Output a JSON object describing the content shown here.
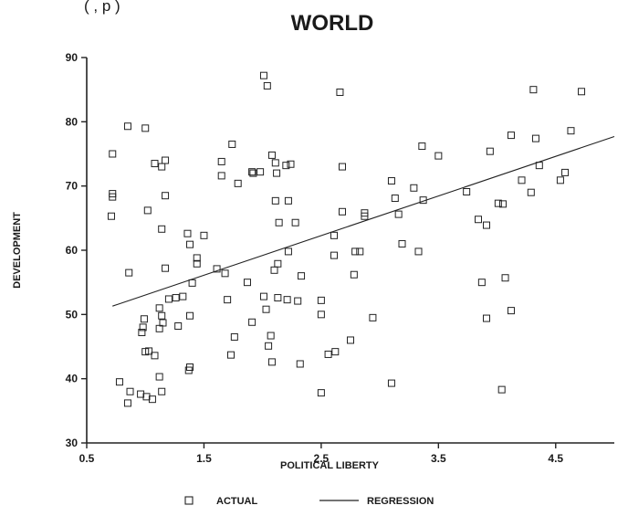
{
  "header_fragment": "(      , p      )",
  "chart_data": {
    "type": "scatter",
    "title": "WORLD",
    "xlabel": "POLITICAL LIBERTY",
    "ylabel": "DEVELOPMENT",
    "xlim": [
      0.5,
      5.0
    ],
    "ylim": [
      30,
      90
    ],
    "xticks": [
      0.5,
      1.5,
      2.5,
      3.5,
      4.5
    ],
    "xtick_labels": [
      "0.5",
      "1.5",
      "2.5",
      "3.5",
      "4.5"
    ],
    "yticks": [
      30,
      40,
      50,
      60,
      70,
      80,
      90
    ],
    "ytick_labels": [
      "30",
      "40",
      "50",
      "60",
      "70",
      "80",
      "90"
    ],
    "grid": false,
    "legend_position": "bottom",
    "series": [
      {
        "name": "ACTUAL",
        "marker": "square",
        "points": [
          [
            0.72,
            75.0
          ],
          [
            0.72,
            68.8
          ],
          [
            0.72,
            68.3
          ],
          [
            0.71,
            65.3
          ],
          [
            0.85,
            79.3
          ],
          [
            0.86,
            56.5
          ],
          [
            1.0,
            79.0
          ],
          [
            1.02,
            66.2
          ],
          [
            1.08,
            73.5
          ],
          [
            1.14,
            73.0
          ],
          [
            1.17,
            74.0
          ],
          [
            1.17,
            68.5
          ],
          [
            1.14,
            63.3
          ],
          [
            1.17,
            57.2
          ],
          [
            0.78,
            39.5
          ],
          [
            0.87,
            38.0
          ],
          [
            0.85,
            36.2
          ],
          [
            0.96,
            37.6
          ],
          [
            1.01,
            37.2
          ],
          [
            1.06,
            36.8
          ],
          [
            1.14,
            38.0
          ],
          [
            1.12,
            40.3
          ],
          [
            1.08,
            43.6
          ],
          [
            1.0,
            44.2
          ],
          [
            1.03,
            44.3
          ],
          [
            0.97,
            47.2
          ],
          [
            0.98,
            48.0
          ],
          [
            0.99,
            49.3
          ],
          [
            1.12,
            47.8
          ],
          [
            1.15,
            48.7
          ],
          [
            1.14,
            49.8
          ],
          [
            1.12,
            51.0
          ],
          [
            1.2,
            52.4
          ],
          [
            1.26,
            52.6
          ],
          [
            1.32,
            52.8
          ],
          [
            1.28,
            48.2
          ],
          [
            1.37,
            41.3
          ],
          [
            1.38,
            41.8
          ],
          [
            1.38,
            49.8
          ],
          [
            1.4,
            54.9
          ],
          [
            1.44,
            57.9
          ],
          [
            1.44,
            58.8
          ],
          [
            1.36,
            62.6
          ],
          [
            1.38,
            60.9
          ],
          [
            1.5,
            62.3
          ],
          [
            1.61,
            57.1
          ],
          [
            1.68,
            56.4
          ],
          [
            1.7,
            52.3
          ],
          [
            1.76,
            46.5
          ],
          [
            1.73,
            43.7
          ],
          [
            1.65,
            71.6
          ],
          [
            1.65,
            73.8
          ],
          [
            1.74,
            76.5
          ],
          [
            1.79,
            70.4
          ],
          [
            1.87,
            55.0
          ],
          [
            1.91,
            72.2
          ],
          [
            1.92,
            72.0
          ],
          [
            1.91,
            48.8
          ],
          [
            1.98,
            72.2
          ],
          [
            2.01,
            52.8
          ],
          [
            2.03,
            50.8
          ],
          [
            2.05,
            45.1
          ],
          [
            2.07,
            46.7
          ],
          [
            2.08,
            42.6
          ],
          [
            2.01,
            87.2
          ],
          [
            2.04,
            85.6
          ],
          [
            2.08,
            74.8
          ],
          [
            2.11,
            73.6
          ],
          [
            2.12,
            72.0
          ],
          [
            2.11,
            67.7
          ],
          [
            2.1,
            56.9
          ],
          [
            2.13,
            57.9
          ],
          [
            2.13,
            52.6
          ],
          [
            2.14,
            64.3
          ],
          [
            2.2,
            73.2
          ],
          [
            2.24,
            73.4
          ],
          [
            2.22,
            67.7
          ],
          [
            2.22,
            59.8
          ],
          [
            2.21,
            52.3
          ],
          [
            2.28,
            64.3
          ],
          [
            2.3,
            52.1
          ],
          [
            2.33,
            56.0
          ],
          [
            2.32,
            42.3
          ],
          [
            2.5,
            37.8
          ],
          [
            2.5,
            50.0
          ],
          [
            2.5,
            52.2
          ],
          [
            2.56,
            43.8
          ],
          [
            2.62,
            44.2
          ],
          [
            2.61,
            59.2
          ],
          [
            2.61,
            62.3
          ],
          [
            2.66,
            84.6
          ],
          [
            2.68,
            73.0
          ],
          [
            2.68,
            66.0
          ],
          [
            2.75,
            46.0
          ],
          [
            2.78,
            56.2
          ],
          [
            2.79,
            59.8
          ],
          [
            2.83,
            59.8
          ],
          [
            2.87,
            65.3
          ],
          [
            2.87,
            65.8
          ],
          [
            2.94,
            49.5
          ],
          [
            3.1,
            39.3
          ],
          [
            3.1,
            70.8
          ],
          [
            3.13,
            68.1
          ],
          [
            3.16,
            65.6
          ],
          [
            3.19,
            61.0
          ],
          [
            3.29,
            69.7
          ],
          [
            3.33,
            59.8
          ],
          [
            3.37,
            67.8
          ],
          [
            3.36,
            76.2
          ],
          [
            3.5,
            74.7
          ],
          [
            3.74,
            69.1
          ],
          [
            3.84,
            64.8
          ],
          [
            3.87,
            55.0
          ],
          [
            3.91,
            49.4
          ],
          [
            3.91,
            63.9
          ],
          [
            3.94,
            75.4
          ],
          [
            4.01,
            67.3
          ],
          [
            4.05,
            67.2
          ],
          [
            4.07,
            55.7
          ],
          [
            4.04,
            38.3
          ],
          [
            4.12,
            77.9
          ],
          [
            4.12,
            50.6
          ],
          [
            4.21,
            70.9
          ],
          [
            4.31,
            85.0
          ],
          [
            4.33,
            77.4
          ],
          [
            4.29,
            69.0
          ],
          [
            4.36,
            73.2
          ],
          [
            4.54,
            70.9
          ],
          [
            4.58,
            72.1
          ],
          [
            4.63,
            78.6
          ],
          [
            4.72,
            84.7
          ]
        ]
      },
      {
        "name": "REGRESSION",
        "type": "line",
        "points": [
          [
            0.72,
            51.3
          ],
          [
            5.0,
            77.7
          ]
        ]
      }
    ]
  }
}
